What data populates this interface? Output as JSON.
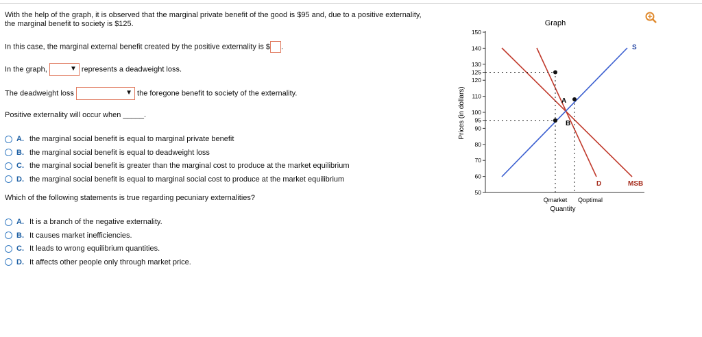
{
  "intro": "With the help of the graph, it is observed that the marginal private benefit of the good is $95 and, due to a positive externality, the marginal benefit to society is $125.",
  "q1": {
    "prompt": "In this case, the marginal external benefit created by the positive externality is $",
    "suffix": "."
  },
  "q2": {
    "prefix": "In the graph,",
    "suffix": "represents a deadweight loss."
  },
  "q3": {
    "prefix": "The deadweight loss",
    "suffix": "the foregone benefit to society of the externality."
  },
  "q4": {
    "prompt": "Positive externality will occur when _____.",
    "options": [
      {
        "letter": "A.",
        "text": "the marginal social benefit is equal to marginal private benefit"
      },
      {
        "letter": "B.",
        "text": "the marginal social benefit is equal to deadweight loss"
      },
      {
        "letter": "C.",
        "text": "the marginal social benefit is greater than the marginal cost to produce at the market equilibrium"
      },
      {
        "letter": "D.",
        "text": "the marginal social benefit is equal to marginal social cost to produce at the market equilibrium"
      }
    ]
  },
  "q5": {
    "prompt": "Which of the following statements is true regarding pecuniary externalities?",
    "options": [
      {
        "letter": "A.",
        "text": "It is a branch of the negative externality."
      },
      {
        "letter": "B.",
        "text": "It causes market inefficiencies."
      },
      {
        "letter": "C.",
        "text": "It leads to wrong equilibrium quantities."
      },
      {
        "letter": "D.",
        "text": "It affects other people only through market price."
      }
    ]
  },
  "graph": {
    "title": "Graph",
    "y_label": "Prices (in dollars)",
    "x_label": "Quantity",
    "ylim": [
      50,
      150
    ],
    "yticks": [
      50,
      60,
      70,
      80,
      90,
      95,
      100,
      110,
      120,
      125,
      130,
      140,
      150
    ],
    "guides": [
      125,
      95
    ],
    "curve_labels": {
      "s": "S",
      "d": "D",
      "msb": "MSB"
    },
    "point_labels": {
      "a": "A",
      "b": "B"
    },
    "x_marks": {
      "market": "Qmarket",
      "optimal": "Qoptimal"
    }
  }
}
